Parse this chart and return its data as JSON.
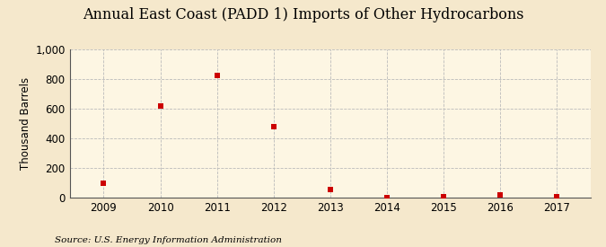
{
  "title": "Annual East Coast (PADD 1) Imports of Other Hydrocarbons",
  "ylabel": "Thousand Barrels",
  "source": "Source: U.S. Energy Information Administration",
  "background_color": "#f5e8cc",
  "plot_background_color": "#fdf6e3",
  "years": [
    2009,
    2010,
    2011,
    2012,
    2013,
    2014,
    2015,
    2016,
    2017
  ],
  "values": [
    95,
    618,
    825,
    478,
    55,
    0,
    8,
    18,
    5
  ],
  "marker_color": "#cc0000",
  "xlim": [
    2008.4,
    2017.6
  ],
  "ylim": [
    0,
    1000
  ],
  "yticks": [
    0,
    200,
    400,
    600,
    800,
    1000
  ],
  "ytick_labels": [
    "0",
    "200",
    "400",
    "600",
    "800",
    "1,000"
  ],
  "xticks": [
    2009,
    2010,
    2011,
    2012,
    2013,
    2014,
    2015,
    2016,
    2017
  ],
  "title_fontsize": 11.5,
  "axis_fontsize": 8.5,
  "source_fontsize": 7.5,
  "grid_color": "#bbbbbb",
  "spine_color": "#555555"
}
